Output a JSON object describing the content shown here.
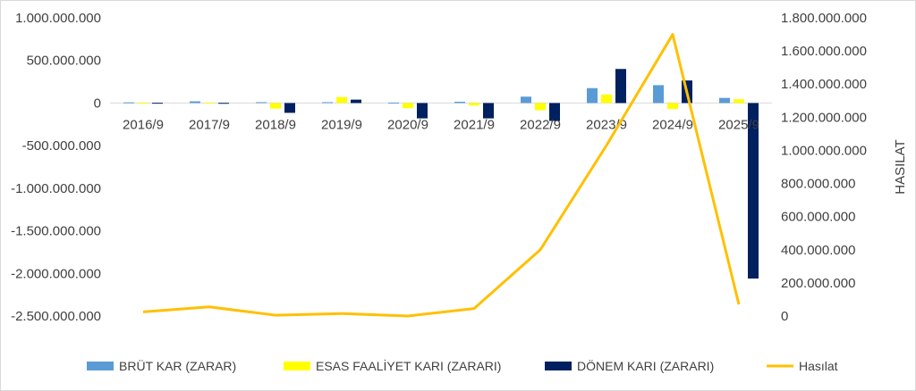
{
  "chart_data": {
    "type": "bar",
    "categories": [
      "2016/9",
      "2017/9",
      "2018/9",
      "2019/9",
      "2020/9",
      "2021/9",
      "2022/9",
      "2023/9",
      "2024/9",
      "2025/9"
    ],
    "series": [
      {
        "name": "BRÜT KAR (ZARAR)",
        "type": "bar",
        "axis": "left",
        "color": "#5b9bd5",
        "values": [
          8000000,
          20000000,
          10000000,
          10000000,
          5000000,
          15000000,
          75000000,
          175000000,
          210000000,
          60000000
        ]
      },
      {
        "name": "ESAS FAALİYET KARI (ZARARI)",
        "type": "bar",
        "axis": "left",
        "color": "#ffff00",
        "values": [
          2000000,
          3000000,
          -65000000,
          70000000,
          -60000000,
          -30000000,
          -85000000,
          100000000,
          -70000000,
          45000000
        ]
      },
      {
        "name": "DÖNEM KARI (ZARARI)",
        "type": "bar",
        "axis": "left",
        "color": "#002060",
        "values": [
          3000000,
          2000000,
          -115000000,
          40000000,
          -180000000,
          -180000000,
          -210000000,
          400000000,
          265000000,
          -2060000000
        ]
      },
      {
        "name": "Hasılat",
        "type": "line",
        "axis": "right",
        "color": "#ffc000",
        "values": [
          25000000,
          55000000,
          5000000,
          15000000,
          0,
          45000000,
          400000000,
          1030000000,
          1700000000,
          70000000
        ]
      }
    ],
    "y_left": {
      "min": -2500000000,
      "max": 1000000000,
      "ticks": [
        1000000000,
        500000000,
        0,
        -500000000,
        -1000000000,
        -1500000000,
        -2000000000,
        -2500000000
      ],
      "tick_labels": [
        "1.000.000.000",
        "500.000.000",
        "0",
        "-500.000.000",
        "-1.000.000.000",
        "-1.500.000.000",
        "-2.000.000.000",
        "-2.500.000.000"
      ]
    },
    "y_right": {
      "label": "HASILAT",
      "min": 0,
      "max": 1800000000,
      "ticks": [
        1800000000,
        1600000000,
        1400000000,
        1200000000,
        1000000000,
        800000000,
        600000000,
        400000000,
        200000000,
        0
      ],
      "tick_labels": [
        "1.800.000.000",
        "1.600.000.000",
        "1.400.000.000",
        "1.200.000.000",
        "1.000.000.000",
        "800.000.000",
        "600.000.000",
        "400.000.000",
        "200.000.000",
        "0"
      ]
    },
    "title": "",
    "xlabel": "",
    "grid": false,
    "legend": "bottom"
  }
}
